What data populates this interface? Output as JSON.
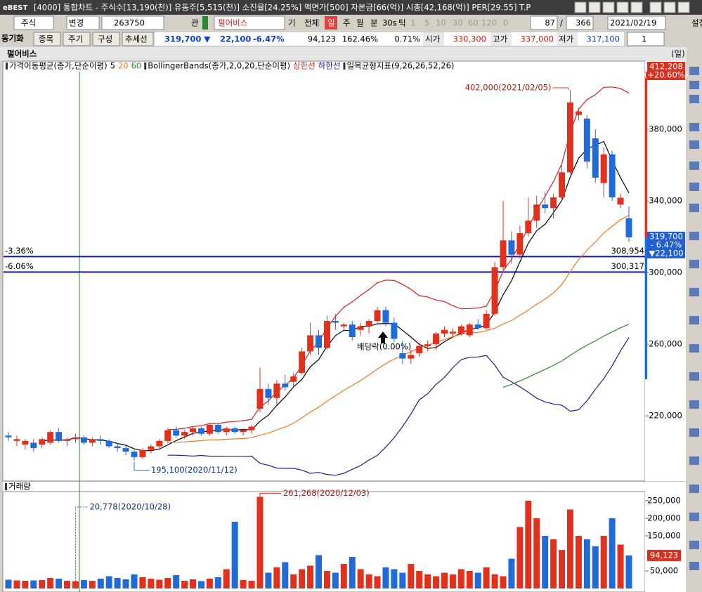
{
  "window": {
    "logo": "eBEST",
    "title": "[4000] 통합차트 - 주식수[13,190(천)] 유동주[5,515(천)] 소진율[24.25%] 액면가[500] 자본금[66(억)] 시총[42,168(억)] PER[29.55] T.P"
  },
  "toolbar": {
    "market": "주식",
    "change": "변경",
    "code": "263750",
    "fav": "관",
    "name": "펄어비스",
    "base": "기",
    "all": "전체",
    "day": "일",
    "week": "주",
    "month": "월",
    "minute": "분",
    "sec": "30s",
    "tick": "틱",
    "p1": "1",
    "p5": "5",
    "p10": "10",
    "p30": "30",
    "p60": "60",
    "p120": "120",
    "zero": "0",
    "count": "87",
    "slash": "/",
    "total": "366",
    "date": "2021/02/19",
    "settings": "설정"
  },
  "quote": {
    "sync": "동기화",
    "item": "종목",
    "period": "주기",
    "layout": "구성",
    "trend": "추세선",
    "price": "319,700 ▼",
    "diff": "22,100",
    "rate": "-6.47%",
    "volume": "94,123",
    "vol_rate": "162.46%",
    "turnover": "0.71%",
    "open_label": "시가",
    "open": "330,300",
    "high_label": "고가",
    "high": "337,000",
    "low_label": "저가",
    "low": "317,100",
    "one": "1"
  },
  "panel": {
    "name": "펄어비스",
    "cycle": "(일)"
  },
  "chart_data": [
    {
      "type": "candlestick",
      "ohlc": [
        [
          209000,
          211000,
          206000,
          208000
        ],
        [
          206000,
          209000,
          203000,
          207000
        ],
        [
          204000,
          207000,
          201000,
          206000
        ],
        [
          205000,
          207000,
          200000,
          202000
        ],
        [
          204000,
          208000,
          202000,
          207000
        ],
        [
          205000,
          212000,
          204000,
          211000
        ],
        [
          211000,
          213000,
          205000,
          206000
        ],
        [
          206000,
          208000,
          203000,
          207000
        ],
        [
          207000,
          210000,
          205000,
          208000
        ],
        [
          208000,
          209000,
          204000,
          205000
        ],
        [
          205000,
          208000,
          203000,
          207000
        ],
        [
          207000,
          209000,
          204000,
          206000
        ],
        [
          206000,
          207000,
          202000,
          203000
        ],
        [
          203000,
          205000,
          200000,
          202000
        ],
        [
          202000,
          204000,
          198000,
          200000
        ],
        [
          200000,
          201000,
          195100,
          197000
        ],
        [
          197000,
          202000,
          196000,
          201000
        ],
        [
          201000,
          204000,
          199000,
          203000
        ],
        [
          203000,
          207000,
          201000,
          206000
        ],
        [
          206000,
          213000,
          205000,
          212000
        ],
        [
          212000,
          214000,
          208000,
          209000
        ],
        [
          209000,
          212000,
          207000,
          211000
        ],
        [
          211000,
          214000,
          209000,
          213000
        ],
        [
          213000,
          214000,
          209000,
          210000
        ],
        [
          210000,
          216000,
          209000,
          215000
        ],
        [
          215000,
          216000,
          210000,
          211000
        ],
        [
          211000,
          214000,
          209000,
          213000
        ],
        [
          213000,
          214000,
          210000,
          211000
        ],
        [
          211000,
          213000,
          209000,
          212000
        ],
        [
          212000,
          215000,
          210000,
          214000
        ],
        [
          224000,
          247000,
          222000,
          235000
        ],
        [
          235000,
          238000,
          226000,
          230000
        ],
        [
          230000,
          240000,
          226000,
          238000
        ],
        [
          238000,
          243000,
          234000,
          236000
        ],
        [
          239000,
          244000,
          236000,
          242000
        ],
        [
          244000,
          258000,
          243000,
          256000
        ],
        [
          256000,
          272000,
          254000,
          265000
        ],
        [
          265000,
          268000,
          254000,
          258000
        ],
        [
          258000,
          276000,
          257000,
          273000
        ],
        [
          273000,
          277000,
          268000,
          272000
        ],
        [
          270000,
          272000,
          267000,
          271000
        ],
        [
          271000,
          273000,
          262000,
          264000
        ],
        [
          268000,
          272000,
          265000,
          270000
        ],
        [
          270000,
          274000,
          266000,
          273000
        ],
        [
          273000,
          281000,
          271000,
          279000
        ],
        [
          279000,
          281000,
          270000,
          272000
        ],
        [
          272000,
          275000,
          261000,
          263000
        ],
        [
          255000,
          262000,
          249000,
          252000
        ],
        [
          252000,
          257000,
          249000,
          254000
        ],
        [
          255000,
          261000,
          253000,
          259000
        ],
        [
          259000,
          262000,
          256000,
          260000
        ],
        [
          260000,
          267000,
          257000,
          266000
        ],
        [
          266000,
          270000,
          264000,
          268000
        ],
        [
          266000,
          269000,
          264000,
          267000
        ],
        [
          266000,
          271000,
          265000,
          270000
        ],
        [
          265000,
          272000,
          264000,
          271000
        ],
        [
          271000,
          274000,
          268000,
          269000
        ],
        [
          269000,
          279000,
          268000,
          277000
        ],
        [
          277000,
          306000,
          276000,
          303000
        ],
        [
          303000,
          340000,
          300000,
          318000
        ],
        [
          318000,
          323000,
          305000,
          310000
        ],
        [
          310000,
          326000,
          308000,
          322000
        ],
        [
          322000,
          342000,
          320000,
          329000
        ],
        [
          329000,
          343000,
          325000,
          338000
        ],
        [
          338000,
          345000,
          333000,
          336000
        ],
        [
          336000,
          344000,
          330000,
          342000
        ],
        [
          342000,
          360000,
          340000,
          356000
        ],
        [
          356000,
          402000,
          355000,
          395000
        ],
        [
          388000,
          392000,
          385000,
          390000
        ],
        [
          386000,
          388000,
          358000,
          362000
        ],
        [
          375000,
          380000,
          350000,
          353000
        ],
        [
          350000,
          370000,
          342000,
          366000
        ],
        [
          366000,
          368000,
          340000,
          342000
        ],
        [
          338000,
          344000,
          336000,
          341800
        ],
        [
          330300,
          337000,
          317100,
          319700
        ]
      ],
      "ylim": [
        184000,
        412208
      ],
      "yticks": [
        {
          "value": 220000,
          "label": "220,000"
        },
        {
          "value": 260000,
          "label": "260,000"
        },
        {
          "value": 300000,
          "label": "300,000"
        },
        {
          "value": 340000,
          "label": "340,000"
        },
        {
          "value": 380000,
          "label": "380,000"
        }
      ],
      "up_color": "#e2301c",
      "down_color": "#1f6cd8",
      "ma_title": "가격이동평균(종가,단순이평)",
      "moving_averages": [
        {
          "name": "5",
          "color": "#000000"
        },
        {
          "name": "20",
          "color": "#f07820"
        },
        {
          "name": "60",
          "color": "#2a8a2a"
        }
      ],
      "bollinger": {
        "name": "BollingerBands(종가,2,0,20,단순이평)",
        "period": 20,
        "k": 2,
        "upper": {
          "name": "상한선",
          "color": "#d81e1e"
        },
        "lower": {
          "name": "하한선",
          "color": "#1c1c8c"
        }
      },
      "ichimoku": "일목균형지표(9,26,26,52,26)",
      "high_label": "402,000(2021/02/05)",
      "low_label": "195,100(2020/11/12)",
      "event_label": "배당락(0.00%)",
      "levels": [
        {
          "label": "-3.36%",
          "value": 308954,
          "value_label": "308,954"
        },
        {
          "label": "-6.06%",
          "value": 300317,
          "value_label": "300,317"
        }
      ],
      "limit": {
        "value_label": "412,208",
        "change": "(+20.60%)"
      },
      "last": {
        "value_label": "319,700",
        "change": "- 6.47%",
        "diff": "▼22,100"
      }
    },
    {
      "type": "bar",
      "title": "거래량",
      "values": [
        25000,
        23000,
        22000,
        23000,
        24000,
        30000,
        28000,
        22000,
        20778,
        24000,
        22000,
        28000,
        35000,
        30000,
        26000,
        40000,
        32000,
        28000,
        25000,
        30000,
        38000,
        22000,
        26000,
        21000,
        28000,
        32000,
        55000,
        190000,
        24000,
        22000,
        261268,
        45000,
        60000,
        75000,
        40000,
        55000,
        65000,
        95000,
        50000,
        45000,
        70000,
        90000,
        55000,
        40000,
        35000,
        60000,
        55000,
        45000,
        70000,
        50000,
        40000,
        35000,
        45000,
        40000,
        55000,
        50000,
        45000,
        60000,
        40000,
        35000,
        85000,
        175000,
        250000,
        200000,
        150000,
        140000,
        110000,
        225000,
        150000,
        140000,
        120000,
        150000,
        200000,
        125000,
        94123
      ],
      "ylim": [
        0,
        276000
      ],
      "yticks": [
        {
          "value": 50000,
          "label": "50,000"
        },
        {
          "value": 150000,
          "label": "150,000"
        },
        {
          "value": 200000,
          "label": "200,000"
        },
        {
          "value": 250000,
          "label": "250,000"
        }
      ],
      "max_label": "261,268(2020/12/03)",
      "min_label": "20,778(2020/10/28)",
      "last_label": "94,123"
    }
  ]
}
